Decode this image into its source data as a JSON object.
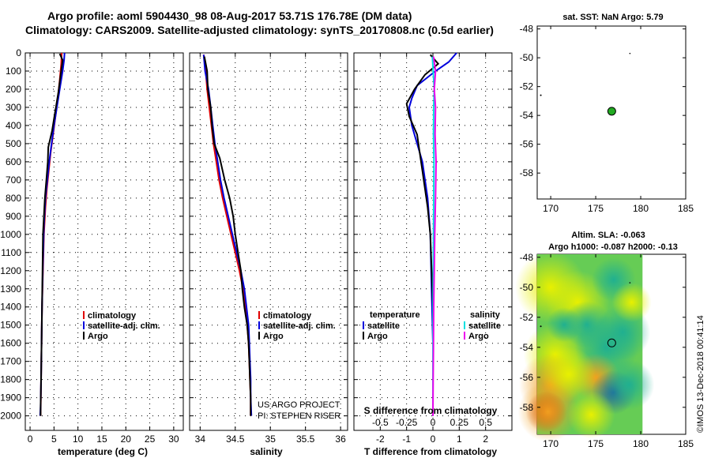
{
  "header": {
    "title_line1": "Argo profile: aoml 5904430_98 08-Aug-2017 53.71S 176.78E (DM data)",
    "title_line2": "Climatology: CARS2009. Satellite-adjusted climatology: synTS_20170808.nc (0.5d earlier)"
  },
  "colors": {
    "climatology": "#e00000",
    "satellite": "#0000dd",
    "argo": "#000000",
    "sat_salinity": "#00e0e0",
    "argo_salinity": "#ee00ee",
    "float_marker": "#22aa22"
  },
  "chart_data": [
    {
      "type": "line",
      "title": "temperature profile",
      "xlabel": "temperature (deg C)",
      "ylabel": "",
      "xlim": [
        -1,
        32
      ],
      "ylim": [
        2080,
        0
      ],
      "xticks": [
        0,
        5,
        10,
        15,
        20,
        25,
        30
      ],
      "yticks": [
        0,
        100,
        200,
        300,
        400,
        500,
        600,
        700,
        800,
        900,
        1000,
        1100,
        1200,
        1300,
        1400,
        1500,
        1600,
        1700,
        1800,
        1900,
        2000
      ],
      "legend": [
        "climatology",
        "satellite-adj. clim.",
        "Argo"
      ],
      "series": [
        {
          "name": "climatology",
          "color": "#e00000",
          "points": [
            [
              6.6,
              0
            ],
            [
              6.5,
              60
            ],
            [
              6.2,
              150
            ],
            [
              5.8,
              250
            ],
            [
              5.3,
              350
            ],
            [
              4.8,
              450
            ],
            [
              4.3,
              550
            ],
            [
              3.9,
              650
            ],
            [
              3.5,
              750
            ],
            [
              3.2,
              850
            ],
            [
              2.9,
              1000
            ],
            [
              2.7,
              1200
            ],
            [
              2.5,
              1400
            ],
            [
              2.4,
              1600
            ],
            [
              2.3,
              1800
            ],
            [
              2.2,
              2000
            ]
          ]
        },
        {
          "name": "satellite-adj. clim.",
          "color": "#0000dd",
          "points": [
            [
              7.2,
              0
            ],
            [
              7.1,
              40
            ],
            [
              6.8,
              100
            ],
            [
              6.2,
              200
            ],
            [
              5.6,
              300
            ],
            [
              5.0,
              400
            ],
            [
              4.5,
              500
            ],
            [
              4.0,
              600
            ],
            [
              3.6,
              700
            ],
            [
              3.2,
              800
            ],
            [
              2.9,
              950
            ],
            [
              2.7,
              1150
            ],
            [
              2.5,
              1400
            ],
            [
              2.4,
              1600
            ],
            [
              2.3,
              1800
            ],
            [
              2.2,
              1950
            ],
            [
              2.1,
              2000
            ]
          ]
        },
        {
          "name": "Argo",
          "color": "#000000",
          "points": [
            [
              6.2,
              5
            ],
            [
              6.8,
              40
            ],
            [
              6.4,
              120
            ],
            [
              5.9,
              220
            ],
            [
              5.2,
              330
            ],
            [
              4.6,
              430
            ],
            [
              3.8,
              520
            ],
            [
              3.7,
              600
            ],
            [
              3.4,
              700
            ],
            [
              3.1,
              800
            ],
            [
              2.9,
              900
            ],
            [
              2.7,
              1000
            ],
            [
              2.6,
              1200
            ],
            [
              2.5,
              1400
            ],
            [
              2.4,
              1600
            ],
            [
              2.3,
              1800
            ],
            [
              2.2,
              1950
            ],
            [
              2.2,
              2000
            ]
          ]
        }
      ]
    },
    {
      "type": "line",
      "title": "salinity profile",
      "xlabel": "salinity",
      "ylabel": "",
      "xlim": [
        33.85,
        36.1
      ],
      "ylim": [
        2080,
        0
      ],
      "xticks": [
        34,
        34.5,
        35,
        35.5,
        36
      ],
      "legend": [
        "climatology",
        "satellite-adj. clim.",
        "Argo"
      ],
      "series": [
        {
          "name": "climatology",
          "color": "#e00000",
          "points": [
            [
              34.05,
              10
            ],
            [
              34.08,
              100
            ],
            [
              34.1,
              200
            ],
            [
              34.13,
              300
            ],
            [
              34.16,
              400
            ],
            [
              34.19,
              500
            ],
            [
              34.23,
              600
            ],
            [
              34.27,
              700
            ],
            [
              34.32,
              800
            ],
            [
              34.38,
              900
            ],
            [
              34.44,
              1000
            ],
            [
              34.5,
              1100
            ],
            [
              34.56,
              1200
            ],
            [
              34.61,
              1300
            ],
            [
              34.64,
              1400
            ],
            [
              34.67,
              1500
            ],
            [
              34.69,
              1600
            ],
            [
              34.7,
              1700
            ],
            [
              34.71,
              1800
            ],
            [
              34.72,
              1900
            ],
            [
              34.72,
              2000
            ]
          ]
        },
        {
          "name": "satellite-adj. clim.",
          "color": "#0000dd",
          "points": [
            [
              34.05,
              10
            ],
            [
              34.07,
              100
            ],
            [
              34.12,
              200
            ],
            [
              34.15,
              300
            ],
            [
              34.18,
              400
            ],
            [
              34.21,
              500
            ],
            [
              34.25,
              600
            ],
            [
              34.29,
              700
            ],
            [
              34.34,
              800
            ],
            [
              34.4,
              900
            ],
            [
              34.46,
              1000
            ],
            [
              34.52,
              1100
            ],
            [
              34.58,
              1200
            ],
            [
              34.63,
              1300
            ],
            [
              34.66,
              1400
            ],
            [
              34.69,
              1500
            ],
            [
              34.7,
              1600
            ],
            [
              34.71,
              1700
            ],
            [
              34.72,
              1800
            ],
            [
              34.72,
              1900
            ],
            [
              34.73,
              2000
            ]
          ]
        },
        {
          "name": "Argo",
          "color": "#000000",
          "points": [
            [
              34.06,
              20
            ],
            [
              34.1,
              100
            ],
            [
              34.11,
              200
            ],
            [
              34.15,
              300
            ],
            [
              34.17,
              400
            ],
            [
              34.2,
              500
            ],
            [
              34.28,
              580
            ],
            [
              34.35,
              700
            ],
            [
              34.42,
              800
            ],
            [
              34.47,
              900
            ],
            [
              34.5,
              1000
            ],
            [
              34.54,
              1100
            ],
            [
              34.58,
              1200
            ],
            [
              34.6,
              1300
            ],
            [
              34.63,
              1400
            ],
            [
              34.67,
              1500
            ],
            [
              34.69,
              1600
            ],
            [
              34.7,
              1700
            ],
            [
              34.71,
              1800
            ],
            [
              34.72,
              1900
            ],
            [
              34.72,
              2000
            ]
          ]
        }
      ],
      "credit_line1": "US ARGO PROJECT",
      "credit_line2": "PI: STEPHEN RISER"
    },
    {
      "type": "line",
      "title": "difference from climatology",
      "xlabel": "T difference from climatology",
      "xlabel_top": "S difference from climatology",
      "xlim": [
        -3,
        3
      ],
      "ylim": [
        2080,
        0
      ],
      "xticks": [
        -2,
        -1,
        0,
        1,
        2
      ],
      "s_ticks": [
        "-0.5",
        "-0.25",
        "0",
        "0.25",
        "0.5"
      ],
      "legend_left_title": "temperature",
      "legend_right_title": "salinity",
      "legend_left": [
        "satellite",
        "Argo"
      ],
      "legend_right": [
        "satellite",
        "Argo"
      ],
      "series": [
        {
          "name": "T satellite",
          "color": "#0000dd",
          "points": [
            [
              0.9,
              0
            ],
            [
              0.6,
              50
            ],
            [
              0.1,
              100
            ],
            [
              -0.6,
              180
            ],
            [
              -0.8,
              250
            ],
            [
              -0.9,
              300
            ],
            [
              -0.8,
              400
            ],
            [
              -0.6,
              500
            ],
            [
              -0.4,
              600
            ],
            [
              -0.3,
              700
            ],
            [
              -0.2,
              800
            ],
            [
              -0.1,
              1000
            ],
            [
              -0.05,
              1300
            ],
            [
              0,
              1600
            ],
            [
              0,
              2000
            ]
          ]
        },
        {
          "name": "T Argo",
          "color": "#000000",
          "points": [
            [
              -0.1,
              10
            ],
            [
              0.2,
              60
            ],
            [
              -0.3,
              120
            ],
            [
              -0.7,
              200
            ],
            [
              -1.0,
              280
            ],
            [
              -0.9,
              350
            ],
            [
              -0.6,
              450
            ],
            [
              -0.5,
              550
            ],
            [
              -0.4,
              650
            ],
            [
              -0.3,
              750
            ],
            [
              -0.2,
              850
            ],
            [
              -0.1,
              1000
            ],
            [
              0,
              1400
            ],
            [
              0,
              2000
            ]
          ]
        },
        {
          "name": "S satellite",
          "color": "#00e0e0",
          "points": [
            [
              -0.02,
              20
            ],
            [
              0.01,
              100
            ],
            [
              0.05,
              200
            ],
            [
              0.03,
              300
            ],
            [
              0.02,
              450
            ],
            [
              0.04,
              600
            ],
            [
              0.03,
              800
            ],
            [
              0.02,
              1000
            ],
            [
              0.01,
              1300
            ],
            [
              0,
              1600
            ],
            [
              0,
              2000
            ]
          ]
        },
        {
          "name": "S Argo",
          "color": "#ee00ee",
          "points": [
            [
              0.02,
              20
            ],
            [
              0.1,
              100
            ],
            [
              0.05,
              200
            ],
            [
              0.1,
              300
            ],
            [
              0.08,
              450
            ],
            [
              0.12,
              600
            ],
            [
              0.1,
              800
            ],
            [
              0.07,
              1000
            ],
            [
              0.05,
              1200
            ],
            [
              0.03,
              1400
            ],
            [
              0.02,
              1600
            ],
            [
              0.01,
              1800
            ],
            [
              0,
              2000
            ]
          ]
        }
      ]
    },
    {
      "type": "scatter",
      "title": "sat. SST: NaN Argo: 5.79",
      "xlim": [
        168.5,
        185
      ],
      "ylim": [
        -59.8,
        -47.8
      ],
      "xticks": [
        170,
        175,
        180,
        185
      ],
      "yticks": [
        -48,
        -50,
        -52,
        -54,
        -56,
        -58
      ],
      "points": [
        [
          176.78,
          -53.71
        ]
      ]
    },
    {
      "type": "heatmap",
      "title_line1": "Altim. SLA: -0.063",
      "title_line2": "Argo h1000: -0.087 h2000: -0.13",
      "xlim": [
        168.5,
        185
      ],
      "ylim": [
        -59.8,
        -47.8
      ],
      "xticks": [
        170,
        175,
        180,
        185
      ],
      "yticks": [
        -48,
        -50,
        -52,
        -54,
        -56,
        -58
      ],
      "points": [
        [
          176.78,
          -53.71
        ]
      ]
    }
  ],
  "credit": {
    "vertical_text": "©IMOS 13-Dec-2018 00:41:14"
  }
}
